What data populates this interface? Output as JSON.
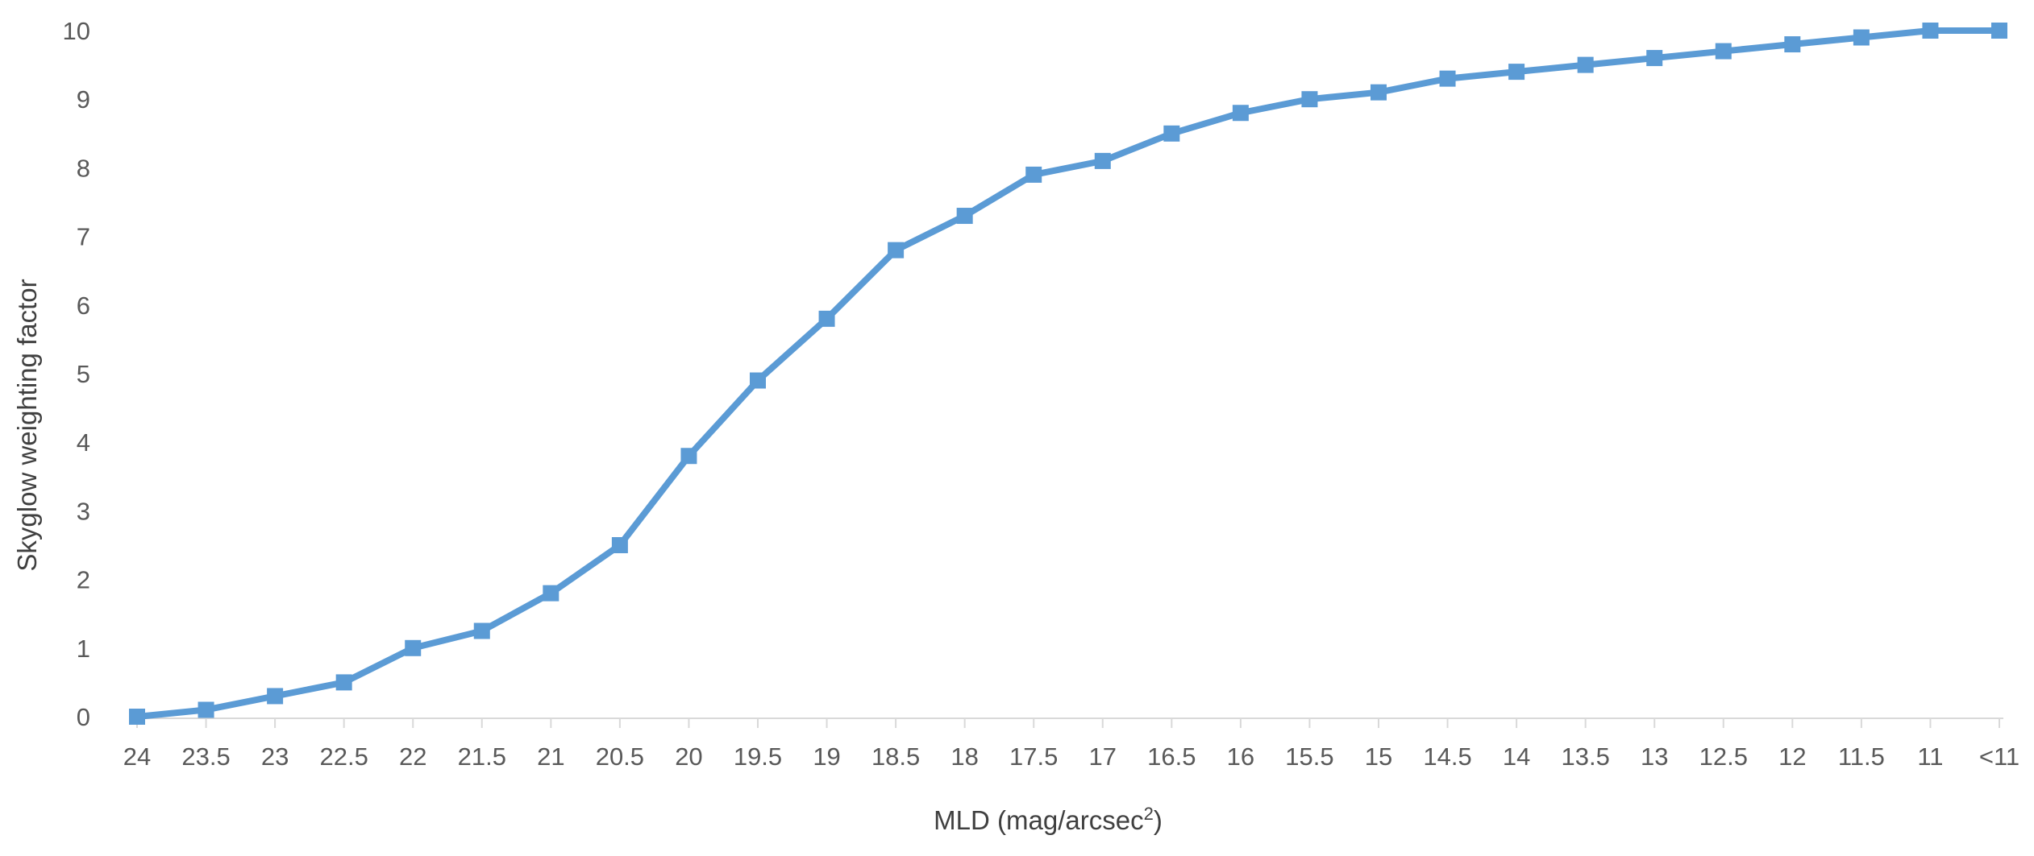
{
  "chart_data": {
    "type": "line",
    "title": "",
    "xlabel": "MLD (mag/arcsec",
    "xlabel_superscript": "2",
    "xlabel_suffix": ")",
    "ylabel": "Skyglow weighting factor",
    "categories": [
      "24",
      "23.5",
      "23",
      "22.5",
      "22",
      "21.5",
      "21",
      "20.5",
      "20",
      "19.5",
      "19",
      "18.5",
      "18",
      "17.5",
      "17",
      "16.5",
      "16",
      "15.5",
      "15",
      "14.5",
      "14",
      "13.5",
      "13",
      "12.5",
      "12",
      "11.5",
      "11",
      "<11"
    ],
    "series": [
      {
        "values": [
          0,
          0.1,
          0.3,
          0.5,
          1.0,
          1.25,
          1.8,
          2.5,
          3.8,
          4.9,
          5.8,
          6.8,
          7.3,
          7.9,
          8.1,
          8.5,
          8.8,
          9.0,
          9.1,
          9.3,
          9.4,
          9.5,
          9.6,
          9.7,
          9.8,
          9.9,
          10.0,
          10.0
        ],
        "color": "#5b9bd5",
        "marker": "square"
      }
    ],
    "ylim": [
      0,
      10
    ],
    "yticks": [
      0,
      1,
      2,
      3,
      4,
      5,
      6,
      7,
      8,
      9,
      10
    ],
    "grid": false,
    "legend": "none"
  }
}
